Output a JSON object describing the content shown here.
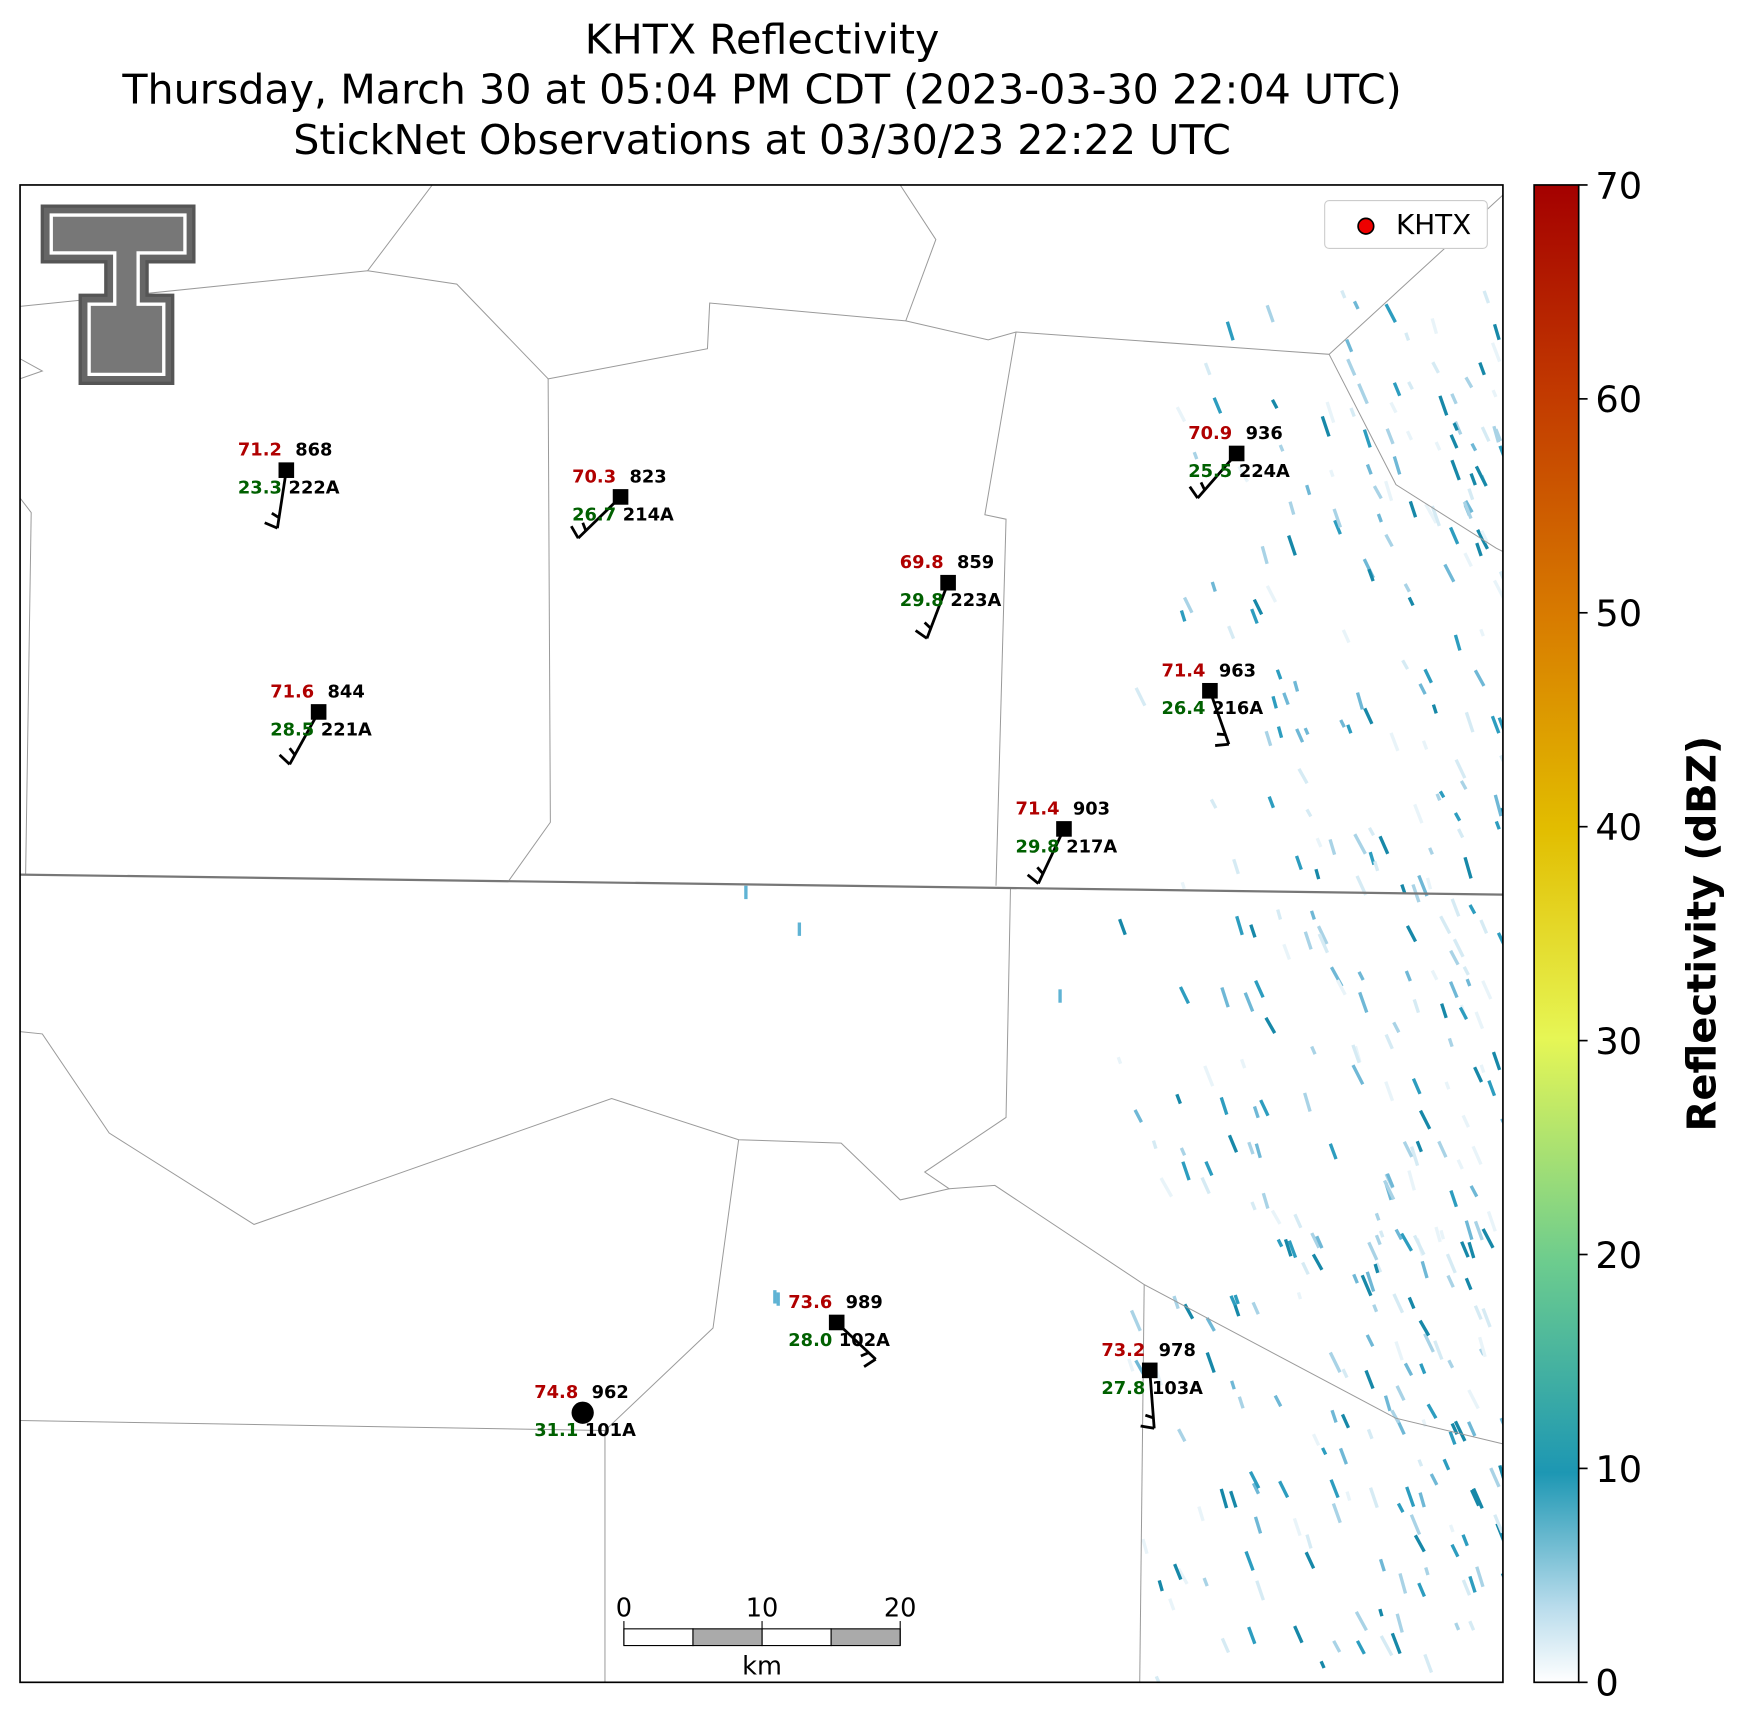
{
  "title": [
    "KHTX Reflectivity",
    "Thursday, March 30 at 05:04 PM CDT (2023-03-30 22:04 UTC)",
    "StickNet Observations at 03/30/23 22:22 UTC"
  ],
  "legend": {
    "label": "KHTX"
  },
  "stations": [
    {
      "id": "222A",
      "temperature": "71.2",
      "pressure": "868",
      "dewpoint": "23.3"
    },
    {
      "id": "214A",
      "temperature": "70.3",
      "pressure": "823",
      "dewpoint": "26.7"
    },
    {
      "id": "223A",
      "temperature": "69.8",
      "pressure": "859",
      "dewpoint": "29.8"
    },
    {
      "id": "224A",
      "temperature": "70.9",
      "pressure": "936",
      "dewpoint": "25.5"
    },
    {
      "id": "221A",
      "temperature": "71.6",
      "pressure": "844",
      "dewpoint": "28.5"
    },
    {
      "id": "216A",
      "temperature": "71.4",
      "pressure": "963",
      "dewpoint": "26.4"
    },
    {
      "id": "217A",
      "temperature": "71.4",
      "pressure": "903",
      "dewpoint": "29.8"
    },
    {
      "id": "102A",
      "temperature": "73.6",
      "pressure": "989",
      "dewpoint": "28.0"
    },
    {
      "id": "103A",
      "temperature": "73.2",
      "pressure": "978",
      "dewpoint": "27.8"
    },
    {
      "id": "101A",
      "temperature": "74.8",
      "pressure": "962",
      "dewpoint": "31.1"
    }
  ],
  "colorbar": {
    "label": "Reflectivity (dBZ)",
    "lim": [
      0,
      70
    ],
    "ticks": [
      0,
      10,
      20,
      30,
      40,
      50,
      60,
      70
    ]
  },
  "scale_bar": {
    "ticks": [
      0,
      10,
      20
    ],
    "unit": "km"
  }
}
